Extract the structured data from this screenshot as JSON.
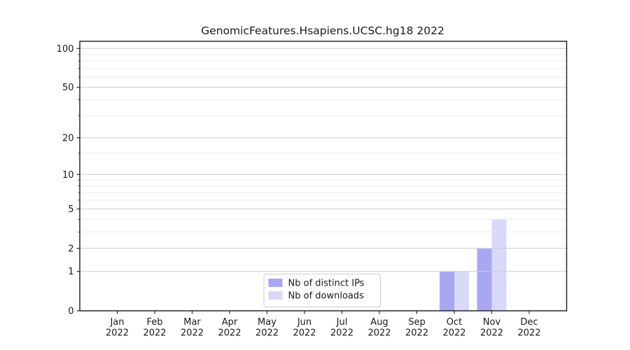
{
  "chart_data": {
    "type": "bar",
    "title": "GenomicFeatures.Hsapiens.UCSC.hg18 2022",
    "categories": [
      "Jan",
      "Feb",
      "Mar",
      "Apr",
      "May",
      "Jun",
      "Jul",
      "Aug",
      "Sep",
      "Oct",
      "Nov",
      "Dec"
    ],
    "year_label": "2022",
    "series": [
      {
        "name": "Nb of distinct IPs",
        "color": "#a8a8f0",
        "values": [
          0,
          0,
          0,
          0,
          0,
          0,
          0,
          0,
          0,
          1,
          2,
          0
        ]
      },
      {
        "name": "Nb of downloads",
        "color": "#d8d8f8",
        "values": [
          0,
          0,
          0,
          0,
          0,
          0,
          0,
          0,
          0,
          1,
          4,
          0
        ]
      }
    ],
    "y_axis": {
      "scale": "log1p",
      "ticks": [
        0,
        1,
        2,
        5,
        10,
        20,
        50,
        100
      ],
      "minor_ticks": [
        3,
        4,
        6,
        7,
        8,
        9,
        15,
        30,
        40,
        60,
        70,
        80,
        90
      ],
      "ylim": [
        0,
        114
      ]
    },
    "grid": {
      "major_color": "#cdcdcd",
      "minor_color": "#ececec",
      "major_on": true,
      "minor_on": true
    },
    "legend": {
      "position": "bottom-center",
      "framed": true
    }
  },
  "colors": {
    "text": "#1a1a1a",
    "axis": "#1a1a1a",
    "background": "#ffffff",
    "legend_border": "#cccccc",
    "legend_fill": "#ffffff"
  }
}
